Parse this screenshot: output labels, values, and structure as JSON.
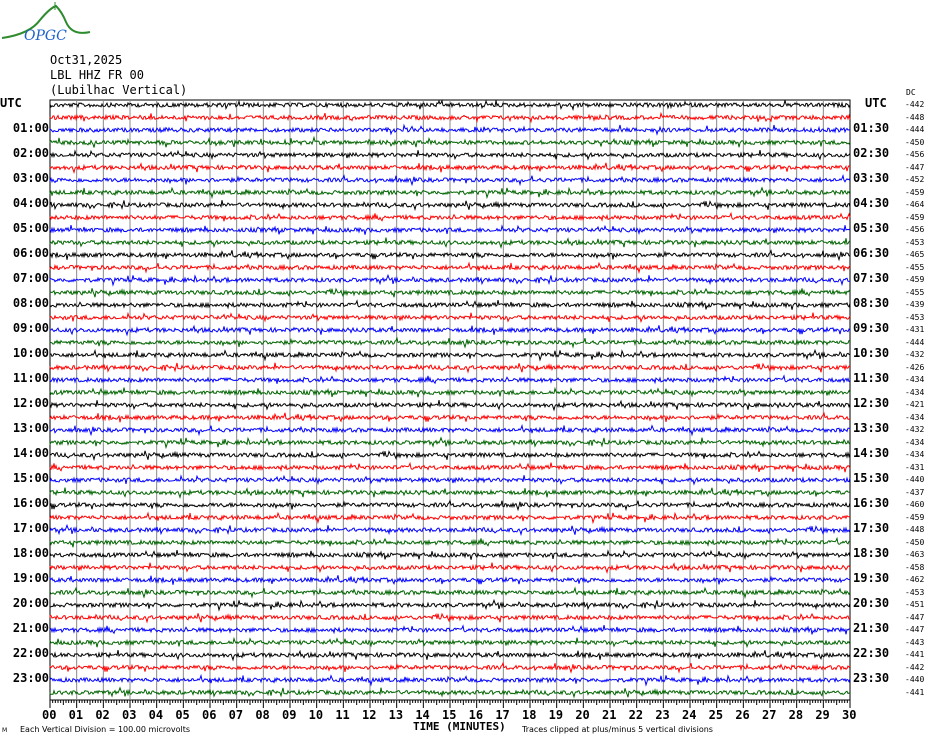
{
  "logo": {
    "text": "OPGC",
    "colors": {
      "curve": "#2e8b2e",
      "text": "#1e5fcc"
    }
  },
  "header": {
    "date": "Oct31,2025",
    "station": "LBL HHZ FR 00",
    "location": "(Lubilhac Vertical)"
  },
  "left_axis_title": "UTC",
  "right_axis_title": "UTC",
  "dc_label": "DC",
  "chart_data": {
    "type": "line",
    "subtype": "helicorder",
    "xlabel": "TIME (MINUTES)",
    "xlim": [
      0,
      30
    ],
    "x_ticks": [
      "00",
      "01",
      "02",
      "03",
      "04",
      "05",
      "06",
      "07",
      "08",
      "09",
      "10",
      "11",
      "12",
      "13",
      "14",
      "15",
      "16",
      "17",
      "18",
      "19",
      "20",
      "21",
      "22",
      "23",
      "24",
      "25",
      "26",
      "27",
      "28",
      "29",
      "30"
    ],
    "left_row_labels": [
      "UTC",
      "01:00",
      "02:00",
      "03:00",
      "04:00",
      "05:00",
      "06:00",
      "07:00",
      "08:00",
      "09:00",
      "10:00",
      "11:00",
      "12:00",
      "13:00",
      "14:00",
      "15:00",
      "16:00",
      "17:00",
      "18:00",
      "19:00",
      "20:00",
      "21:00",
      "22:00",
      "23:00"
    ],
    "right_row_labels": [
      "UTC",
      "01:30",
      "02:30",
      "03:30",
      "04:30",
      "05:30",
      "06:30",
      "07:30",
      "08:30",
      "09:30",
      "10:30",
      "11:30",
      "12:30",
      "13:30",
      "14:30",
      "15:30",
      "16:30",
      "17:30",
      "18:30",
      "19:30",
      "20:30",
      "21:30",
      "22:30",
      "23:30"
    ],
    "dc_offsets": [
      -442,
      -448,
      -444,
      -450,
      -456,
      -447,
      -452,
      -459,
      -464,
      -459,
      -456,
      -453,
      -465,
      -455,
      -459,
      -455,
      -439,
      -453,
      -431,
      -444,
      -432,
      -426,
      -434,
      -434,
      -421,
      -434,
      -432,
      -434,
      -434,
      -431,
      -440,
      -437,
      -460,
      -459,
      -448,
      -450,
      -463,
      -458,
      -462,
      -453,
      -451,
      -447,
      -447,
      -443,
      -441,
      -442,
      -440,
      -441
    ],
    "trace_colors": [
      "#000000",
      "#ff0000",
      "#0000ff",
      "#006400"
    ],
    "grid": true,
    "scale_note": "Each Vertical Division =  100.00 microvolts",
    "clip_note": "Traces clipped at plus/minus 5 vertical divisions"
  },
  "corner_mark": "M"
}
